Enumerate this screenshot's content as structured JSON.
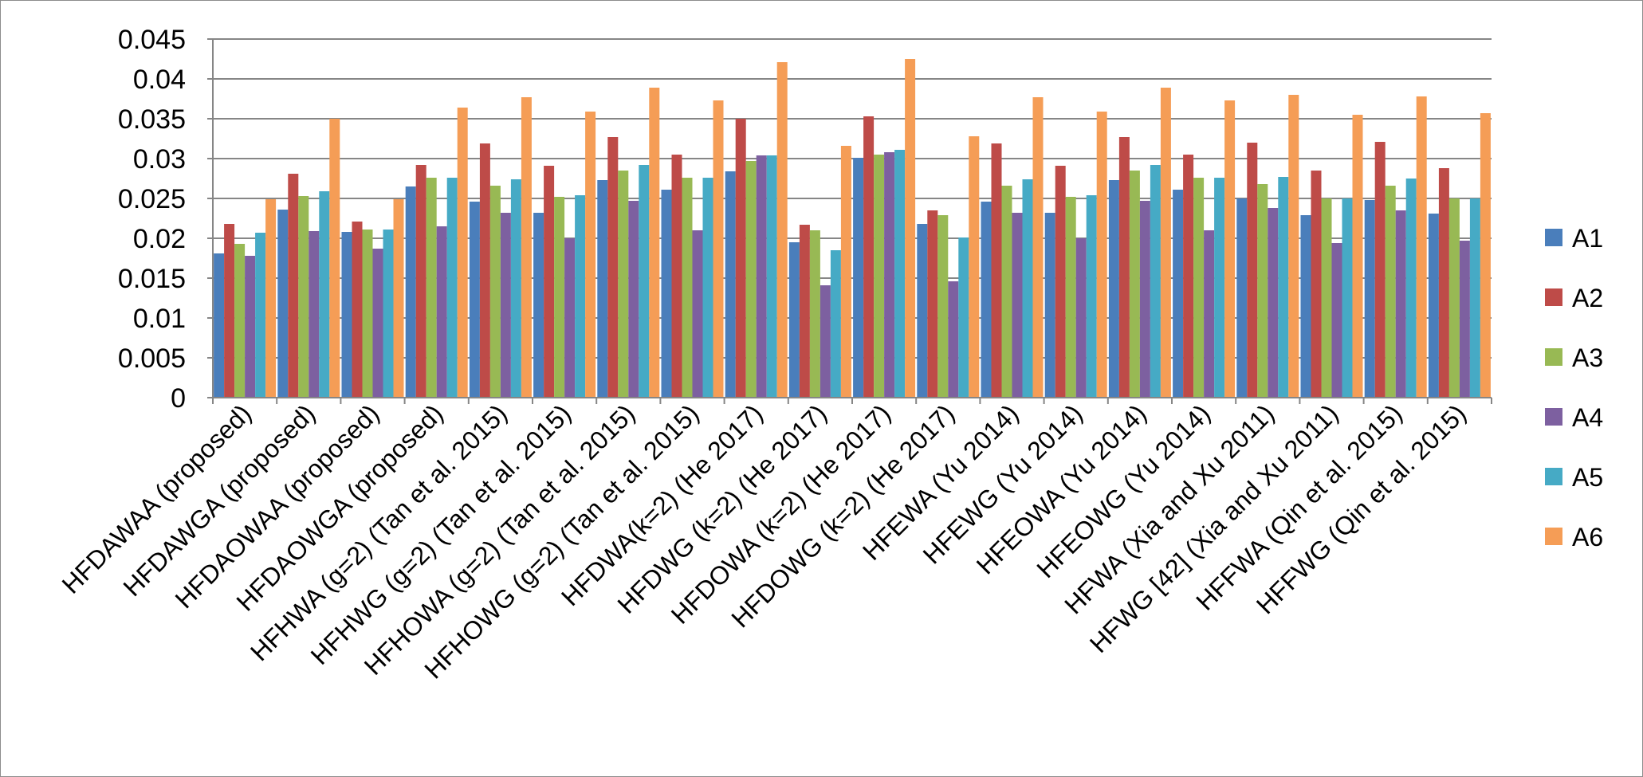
{
  "chart_data": {
    "type": "bar",
    "title": "",
    "xlabel": "",
    "ylabel": "",
    "ylim": [
      0,
      0.045
    ],
    "yticks": [
      "0",
      "0.005",
      "0.01",
      "0.015",
      "0.02",
      "0.025",
      "0.03",
      "0.035",
      "0.04",
      "0.045"
    ],
    "grid": true,
    "legend_position": "right",
    "categories": [
      "HFDAWAA (proposed)",
      "HFDAWGA (proposed)",
      "HFDAOWAA (proposed)",
      "HFDAOWGA (proposed)",
      "HFHWA (g=2) (Tan et al. 2015)",
      "HFHWG (g=2) (Tan et al. 2015)",
      "HFHOWA (g=2) (Tan et al. 2015)",
      "HFHOWG (g=2) (Tan et al. 2015)",
      "HFDWA(k=2) (He 2017)",
      "HFDWG (k=2) (He 2017)",
      "HFDOWA (k=2) (He 2017)",
      "HFDOWG (k=2) (He 2017)",
      "HFEWA (Yu 2014)",
      "HFEWG  (Yu 2014)",
      "HFEOWA (Yu 2014)",
      "HFEOWG (Yu 2014)",
      "HFWA (Xia and Xu 2011)",
      "HFWG [42] (Xia and Xu 2011)",
      "HFFWA (Qin et al. 2015)",
      "HFFWG (Qin et al. 2015)"
    ],
    "series": [
      {
        "name": "A1",
        "color": "#4a7ebb",
        "values": [
          0.0181,
          0.0236,
          0.0208,
          0.0265,
          0.0246,
          0.0232,
          0.0273,
          0.0261,
          0.0284,
          0.0195,
          0.0301,
          0.0218,
          0.0246,
          0.0232,
          0.0273,
          0.0261,
          0.025,
          0.0229,
          0.0248,
          0.0231
        ]
      },
      {
        "name": "A2",
        "color": "#be4b48",
        "values": [
          0.0218,
          0.0281,
          0.0221,
          0.0292,
          0.0319,
          0.0291,
          0.0327,
          0.0305,
          0.035,
          0.0217,
          0.0353,
          0.0235,
          0.0319,
          0.0291,
          0.0327,
          0.0305,
          0.032,
          0.0285,
          0.0321,
          0.0288
        ]
      },
      {
        "name": "A3",
        "color": "#98b954",
        "values": [
          0.0193,
          0.0253,
          0.0211,
          0.0276,
          0.0266,
          0.0252,
          0.0285,
          0.0276,
          0.0297,
          0.021,
          0.0305,
          0.0229,
          0.0266,
          0.0252,
          0.0285,
          0.0276,
          0.0268,
          0.025,
          0.0266,
          0.025
        ]
      },
      {
        "name": "A4",
        "color": "#7d60a0",
        "values": [
          0.0178,
          0.0209,
          0.0187,
          0.0215,
          0.0232,
          0.02,
          0.0247,
          0.021,
          0.0304,
          0.0141,
          0.0308,
          0.0146,
          0.0232,
          0.02,
          0.0247,
          0.021,
          0.0238,
          0.0194,
          0.0235,
          0.0197
        ]
      },
      {
        "name": "A5",
        "color": "#46aac5",
        "values": [
          0.0207,
          0.0259,
          0.0211,
          0.0276,
          0.0274,
          0.0254,
          0.0292,
          0.0276,
          0.0304,
          0.0185,
          0.0311,
          0.0201,
          0.0274,
          0.0254,
          0.0292,
          0.0276,
          0.0277,
          0.025,
          0.0275,
          0.025
        ]
      },
      {
        "name": "A6",
        "color": "#f59d56",
        "values": [
          0.0249,
          0.035,
          0.0249,
          0.0364,
          0.0377,
          0.0359,
          0.0389,
          0.0373,
          0.0421,
          0.0316,
          0.0425,
          0.0328,
          0.0377,
          0.0359,
          0.0389,
          0.0373,
          0.038,
          0.0355,
          0.0378,
          0.0357
        ]
      }
    ]
  }
}
